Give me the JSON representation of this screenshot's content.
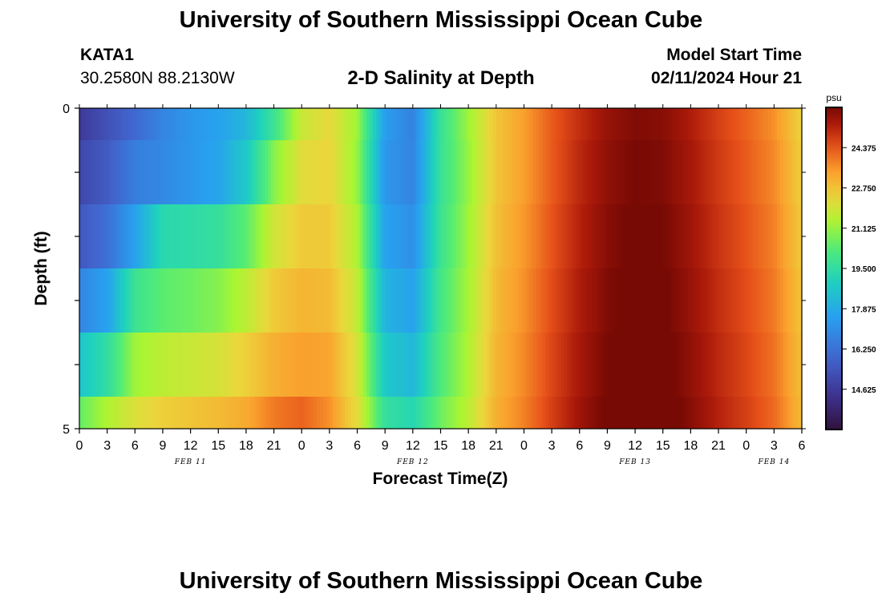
{
  "header": {
    "title": "University of Southern Mississippi Ocean Cube",
    "station_id": "KATA1",
    "station_coords": "30.2580N  88.2130W",
    "chart_title": "2-D Salinity at Depth",
    "model_start_label": "Model Start Time",
    "model_start_value": "02/11/2024 Hour 21"
  },
  "footer": {
    "title": "University of Southern Mississippi Ocean Cube"
  },
  "chart_data": {
    "type": "heatmap",
    "title": "2-D Salinity at Depth",
    "xlabel": "Forecast Time(Z)",
    "ylabel": "Depth (ft)",
    "ylim": [
      0,
      5
    ],
    "y_tick_labels": [
      "0",
      "5"
    ],
    "x_tick_labels": [
      "0",
      "3",
      "6",
      "9",
      "12",
      "15",
      "18",
      "21",
      "0",
      "3",
      "6",
      "9",
      "12",
      "15",
      "18",
      "21",
      "0",
      "3",
      "6",
      "9",
      "12",
      "15",
      "18",
      "21",
      "0",
      "3",
      "6"
    ],
    "x_day_labels": [
      {
        "label": "FEB 11",
        "hour": 12
      },
      {
        "label": "FEB 12",
        "hour": 36
      },
      {
        "label": "FEB 13",
        "hour": 60
      },
      {
        "label": "FEB 14",
        "hour": 75
      }
    ],
    "x_hours_total": 78,
    "depth_layers": 5,
    "rows_layout": [
      0.4,
      0.8,
      0.8,
      0.8,
      0.8,
      0.4
    ],
    "rows_layer_index": [
      0,
      1,
      2,
      3,
      4,
      5
    ],
    "series": [
      {
        "depth_row": 0,
        "hours": [
          0,
          3,
          6,
          9,
          12,
          15,
          18,
          21,
          24,
          27,
          30,
          33,
          36,
          39,
          42,
          45,
          48,
          51,
          54,
          57,
          60,
          63,
          66,
          69,
          72,
          75,
          78
        ],
        "values": [
          14.6,
          15.3,
          16.0,
          16.8,
          17.3,
          17.6,
          18.2,
          19.8,
          21.8,
          22.3,
          21.2,
          17.5,
          16.7,
          19.7,
          21.2,
          22.7,
          23.4,
          24.3,
          25.0,
          25.6,
          25.9,
          25.8,
          25.3,
          24.7,
          24.2,
          23.6,
          22.4
        ]
      },
      {
        "depth_row": 1,
        "hours": [
          0,
          3,
          6,
          9,
          12,
          15,
          18,
          21,
          24,
          27,
          30,
          33,
          36,
          39,
          42,
          45,
          48,
          51,
          54,
          57,
          60,
          63,
          66,
          69,
          72,
          75,
          78
        ],
        "values": [
          15.0,
          15.6,
          16.6,
          16.9,
          17.3,
          17.7,
          18.7,
          20.9,
          22.2,
          22.4,
          21.1,
          17.3,
          16.8,
          19.7,
          21.1,
          22.7,
          23.4,
          24.3,
          25.1,
          25.7,
          26.0,
          25.9,
          25.4,
          24.8,
          24.3,
          23.7,
          22.5
        ]
      },
      {
        "depth_row": 2,
        "hours": [
          0,
          3,
          6,
          9,
          12,
          15,
          18,
          21,
          24,
          27,
          30,
          33,
          36,
          39,
          42,
          45,
          48,
          51,
          54,
          57,
          60,
          63,
          66,
          69,
          72,
          75,
          78
        ],
        "values": [
          15.5,
          16.2,
          17.6,
          19.3,
          19.4,
          19.6,
          20.4,
          21.9,
          22.6,
          22.6,
          21.4,
          17.6,
          17.1,
          19.8,
          21.2,
          22.8,
          23.5,
          24.4,
          25.2,
          25.8,
          26.1,
          26.0,
          25.5,
          24.9,
          24.4,
          23.8,
          22.6
        ]
      },
      {
        "depth_row": 3,
        "hours": [
          0,
          3,
          6,
          9,
          12,
          15,
          18,
          21,
          24,
          27,
          30,
          33,
          36,
          39,
          42,
          45,
          48,
          51,
          54,
          57,
          60,
          63,
          66,
          69,
          72,
          75,
          78
        ],
        "values": [
          16.8,
          17.6,
          19.8,
          20.4,
          20.6,
          20.9,
          21.6,
          22.6,
          23.0,
          22.9,
          21.7,
          18.1,
          17.6,
          20.0,
          21.3,
          22.9,
          23.6,
          24.5,
          25.3,
          25.9,
          26.2,
          26.1,
          25.6,
          25.0,
          24.5,
          23.9,
          22.7
        ]
      },
      {
        "depth_row": 4,
        "hours": [
          0,
          3,
          6,
          9,
          12,
          15,
          18,
          21,
          24,
          27,
          30,
          33,
          36,
          39,
          42,
          45,
          48,
          51,
          54,
          57,
          60,
          63,
          66,
          69,
          72,
          75,
          78
        ],
        "values": [
          18.6,
          19.5,
          21.2,
          21.6,
          21.8,
          22.0,
          22.5,
          23.1,
          23.4,
          23.3,
          22.0,
          18.7,
          18.2,
          20.2,
          21.4,
          23.0,
          23.7,
          24.6,
          25.4,
          26.0,
          26.3,
          26.2,
          25.7,
          25.1,
          24.6,
          24.0,
          22.8
        ]
      },
      {
        "depth_row": 5,
        "hours": [
          0,
          3,
          6,
          9,
          12,
          15,
          18,
          21,
          24,
          27,
          30,
          33,
          36,
          39,
          42,
          45,
          48,
          51,
          54,
          57,
          60,
          63,
          66,
          69,
          72,
          75,
          78
        ],
        "values": [
          20.5,
          21.4,
          22.1,
          22.5,
          22.7,
          22.9,
          23.2,
          23.9,
          24.2,
          23.6,
          22.2,
          19.6,
          19.2,
          20.6,
          21.6,
          23.1,
          23.8,
          24.7,
          25.5,
          26.1,
          26.4,
          26.3,
          25.8,
          25.2,
          24.7,
          24.1,
          22.9
        ]
      }
    ],
    "colorbar": {
      "unit": "psu",
      "vmin": 13.0,
      "vmax": 26.0,
      "tick_values": [
        14.625,
        16.25,
        17.875,
        19.5,
        21.125,
        22.75,
        24.375
      ],
      "tick_labels": [
        "14.625",
        "16.250",
        "17.875",
        "19.500",
        "21.125",
        "22.750",
        "24.375"
      ]
    }
  }
}
